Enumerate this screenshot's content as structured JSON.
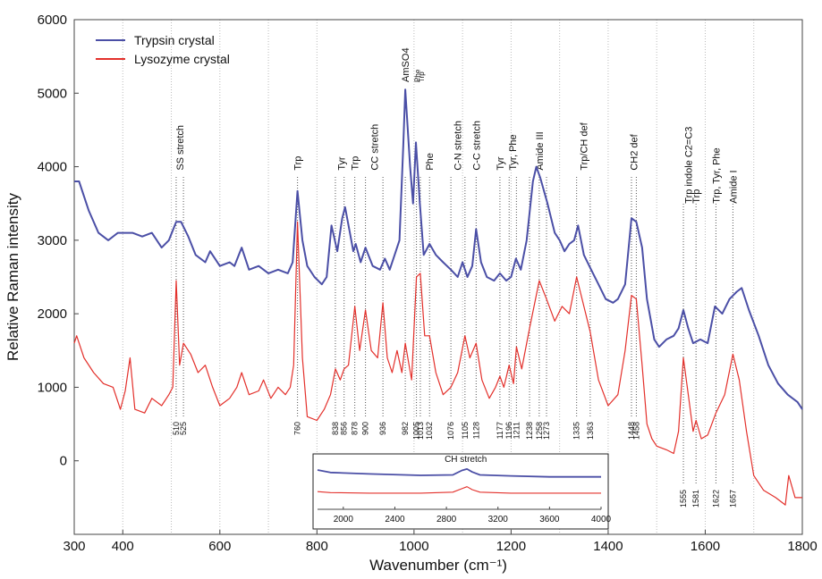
{
  "chart_data": {
    "type": "line",
    "xlabel": "Wavenumber (cm⁻¹)",
    "ylabel": "Relative Raman intensity",
    "xlim": [
      300,
      1800
    ],
    "xticks": [
      300,
      400,
      600,
      800,
      1000,
      1200,
      1400,
      1600,
      1800
    ],
    "xgrid": [
      400,
      500,
      600,
      700,
      800,
      1000,
      1100,
      1200,
      1300,
      1400,
      1500,
      1600,
      1700
    ],
    "ylim": [
      -1000,
      6000
    ],
    "yticks": [
      0,
      1000,
      2000,
      3000,
      4000,
      5000,
      6000
    ],
    "legend": "upper left",
    "series": [
      {
        "name": "Trypsin crystal",
        "color": "#4b4fa6",
        "x": [
          300,
          310,
          330,
          350,
          370,
          390,
          420,
          440,
          460,
          480,
          495,
          510,
          520,
          535,
          550,
          570,
          580,
          600,
          620,
          630,
          645,
          660,
          680,
          700,
          720,
          740,
          750,
          760,
          770,
          780,
          795,
          810,
          820,
          830,
          842,
          852,
          858,
          868,
          875,
          880,
          890,
          900,
          915,
          930,
          940,
          950,
          960,
          970,
          978,
          982,
          992,
          998,
          1004,
          1012,
          1020,
          1032,
          1045,
          1060,
          1076,
          1090,
          1100,
          1110,
          1120,
          1128,
          1138,
          1150,
          1165,
          1177,
          1190,
          1200,
          1210,
          1220,
          1232,
          1245,
          1252,
          1260,
          1275,
          1290,
          1300,
          1310,
          1320,
          1330,
          1338,
          1350,
          1365,
          1380,
          1395,
          1410,
          1420,
          1435,
          1448,
          1458,
          1470,
          1480,
          1495,
          1505,
          1520,
          1535,
          1545,
          1555,
          1565,
          1575,
          1590,
          1605,
          1620,
          1635,
          1650,
          1665,
          1675,
          1690,
          1710,
          1730,
          1750,
          1770,
          1790,
          1800
        ],
        "values": [
          3800,
          3800,
          3400,
          3100,
          3000,
          3100,
          3100,
          3050,
          3100,
          2900,
          3000,
          3250,
          3250,
          3050,
          2800,
          2700,
          2850,
          2650,
          2700,
          2650,
          2900,
          2600,
          2650,
          2550,
          2600,
          2550,
          2700,
          3670,
          3000,
          2650,
          2500,
          2400,
          2500,
          3200,
          2850,
          3300,
          3450,
          3100,
          2850,
          2950,
          2700,
          2900,
          2650,
          2600,
          2750,
          2600,
          2800,
          3000,
          4300,
          5050,
          4000,
          3500,
          4330,
          3500,
          2800,
          2950,
          2800,
          2700,
          2600,
          2500,
          2700,
          2500,
          2650,
          3150,
          2700,
          2500,
          2450,
          2550,
          2450,
          2500,
          2750,
          2600,
          3000,
          3800,
          4000,
          3850,
          3500,
          3100,
          3000,
          2850,
          2950,
          3000,
          3200,
          2800,
          2600,
          2400,
          2200,
          2150,
          2200,
          2400,
          3300,
          3250,
          2900,
          2200,
          1650,
          1550,
          1650,
          1700,
          1800,
          2050,
          1800,
          1600,
          1650,
          1600,
          2100,
          2000,
          2200,
          2300,
          2350,
          2050,
          1700,
          1300,
          1050,
          900,
          800,
          700
        ]
      },
      {
        "name": "Lysozyme crystal",
        "color": "#e3302b",
        "x": [
          300,
          305,
          320,
          340,
          360,
          380,
          395,
          405,
          415,
          425,
          445,
          460,
          480,
          495,
          503,
          510,
          517,
          525,
          540,
          555,
          570,
          585,
          600,
          620,
          635,
          645,
          660,
          680,
          690,
          705,
          720,
          735,
          745,
          752,
          760,
          770,
          780,
          800,
          815,
          828,
          838,
          848,
          856,
          865,
          878,
          888,
          900,
          912,
          925,
          936,
          945,
          955,
          965,
          975,
          982,
          995,
          1005,
          1013,
          1022,
          1032,
          1045,
          1060,
          1076,
          1090,
          1105,
          1115,
          1128,
          1140,
          1155,
          1168,
          1177,
          1185,
          1196,
          1205,
          1211,
          1222,
          1238,
          1258,
          1273,
          1290,
          1305,
          1320,
          1335,
          1350,
          1363,
          1380,
          1400,
          1420,
          1435,
          1448,
          1458,
          1470,
          1480,
          1490,
          1500,
          1520,
          1535,
          1545,
          1555,
          1565,
          1575,
          1581,
          1592,
          1605,
          1622,
          1640,
          1657,
          1670,
          1685,
          1700,
          1720,
          1745,
          1765,
          1772,
          1785,
          1800
        ],
        "values": [
          1600,
          1700,
          1400,
          1200,
          1050,
          1000,
          700,
          950,
          1400,
          700,
          650,
          850,
          750,
          900,
          1000,
          2450,
          1300,
          1600,
          1450,
          1200,
          1300,
          1000,
          750,
          850,
          1000,
          1200,
          900,
          950,
          1100,
          850,
          1000,
          900,
          1000,
          1300,
          3250,
          1400,
          600,
          550,
          700,
          900,
          1250,
          1100,
          1250,
          1300,
          2100,
          1500,
          2050,
          1500,
          1400,
          2150,
          1400,
          1200,
          1500,
          1200,
          1600,
          1100,
          2500,
          2550,
          1700,
          1700,
          1200,
          900,
          1000,
          1200,
          1700,
          1400,
          1600,
          1100,
          850,
          1000,
          1150,
          1000,
          1300,
          1050,
          1550,
          1250,
          1800,
          2450,
          2200,
          1900,
          2100,
          2000,
          2500,
          2100,
          1750,
          1100,
          750,
          900,
          1500,
          2250,
          2200,
          1300,
          500,
          300,
          200,
          150,
          100,
          400,
          1400,
          900,
          400,
          550,
          300,
          350,
          650,
          900,
          1450,
          1100,
          400,
          -200,
          -400,
          -500,
          -600,
          -200,
          -500,
          -500
        ]
      }
    ],
    "peak_lines": [
      510,
      525,
      760,
      838,
      856,
      878,
      900,
      936,
      982,
      1005,
      1013,
      1032,
      1076,
      1105,
      1128,
      1177,
      1196,
      1211,
      1238,
      1258,
      1273,
      1335,
      1363,
      1448,
      1458,
      1555,
      1581,
      1622,
      1657
    ],
    "annotations": [
      {
        "text": "SS stretch",
        "x": 517,
        "y": 3950
      },
      {
        "text": "Trp",
        "x": 760,
        "y": 3950
      },
      {
        "text": "Tyr",
        "x": 850,
        "y": 3950
      },
      {
        "text": "Trp",
        "x": 878,
        "y": 3950
      },
      {
        "text": "CC stretch",
        "x": 918,
        "y": 3950
      },
      {
        "text": "AmSO4",
        "x": 982,
        "y": 5150
      },
      {
        "text": "Phe",
        "x": 1005,
        "y": 5150
      },
      {
        "text": "Trp",
        "x": 1013,
        "y": 5150
      },
      {
        "text": "Phe",
        "x": 1032,
        "y": 3950
      },
      {
        "text": "C-N stretch",
        "x": 1090,
        "y": 3950
      },
      {
        "text": "C-C stretch",
        "x": 1128,
        "y": 3950
      },
      {
        "text": "Tyr",
        "x": 1177,
        "y": 3950
      },
      {
        "text": "Tyr, Phe",
        "x": 1203,
        "y": 3950
      },
      {
        "text": "Amide III",
        "x": 1258,
        "y": 3950
      },
      {
        "text": "Trp/CH def",
        "x": 1349,
        "y": 3950
      },
      {
        "text": "CH2 def",
        "x": 1453,
        "y": 3950
      },
      {
        "text": "Trp indole C2=C3",
        "x": 1565,
        "y": 3500
      },
      {
        "text": "Trp",
        "x": 1581,
        "y": 3500
      },
      {
        "text": "Trp, Tyr, Phe",
        "x": 1622,
        "y": 3500
      },
      {
        "text": "Amide I",
        "x": 1657,
        "y": 3500
      }
    ],
    "inset": {
      "label": "CH stretch",
      "xlim": [
        1800,
        4000
      ],
      "xticks": [
        2000,
        2400,
        2800,
        3200,
        3600,
        4000
      ],
      "ylim": [
        0,
        10
      ],
      "series": [
        {
          "color": "#4b4fa6",
          "x": [
            1800,
            1900,
            2200,
            2600,
            2850,
            2920,
            2960,
            3000,
            3060,
            3300,
            3600,
            4000
          ],
          "values": [
            8,
            7.5,
            7.2,
            6.9,
            7,
            7.9,
            8.2,
            7.6,
            7,
            6.8,
            6.6,
            6.6
          ]
        },
        {
          "color": "#e3302b",
          "x": [
            1800,
            1900,
            2200,
            2600,
            2850,
            2920,
            2960,
            3000,
            3060,
            3300,
            3600,
            4000
          ],
          "values": [
            3.6,
            3.4,
            3.3,
            3.3,
            3.5,
            4.2,
            4.6,
            4,
            3.5,
            3.3,
            3.3,
            3.3
          ]
        }
      ]
    }
  }
}
